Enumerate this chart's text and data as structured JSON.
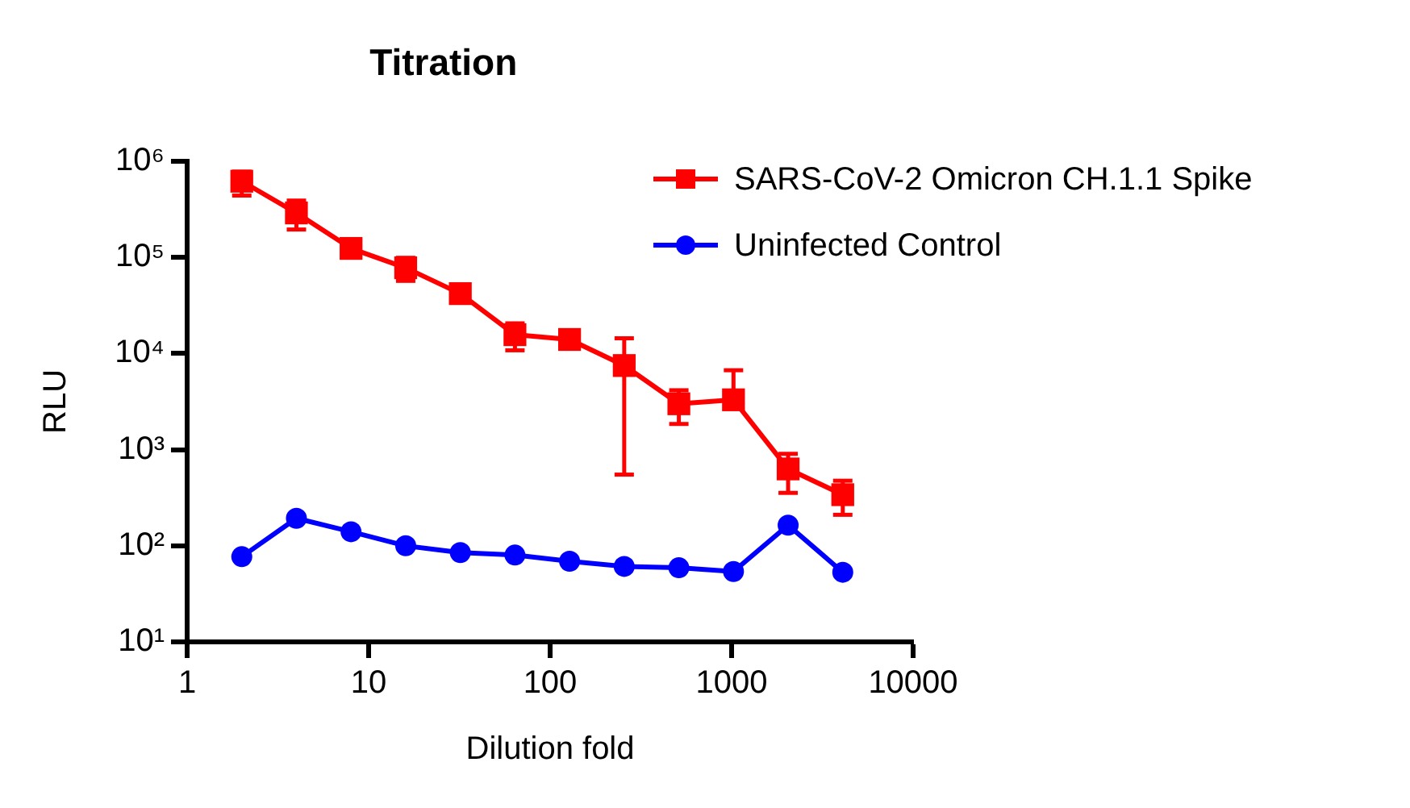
{
  "chart_data": {
    "type": "line",
    "title": "Titration",
    "xlabel": "Dilution fold",
    "ylabel": "RLU",
    "x": [
      2,
      4,
      8,
      16,
      32,
      64,
      128,
      256,
      512,
      1024,
      2048,
      4096
    ],
    "series": [
      {
        "name": "SARS-CoV-2 Omicron CH.1.1 Spike",
        "color": "#ff0000",
        "marker": "square",
        "values": [
          620000,
          290000,
          124000,
          78000,
          42000,
          15700,
          14000,
          7500,
          3000,
          3300,
          630,
          340
        ],
        "errors": [
          [
            440000,
            780000
          ],
          [
            195000,
            390000
          ],
          null,
          [
            57000,
            99000
          ],
          null,
          [
            10800,
            20600
          ],
          null,
          [
            550,
            14400
          ],
          [
            1850,
            4150
          ],
          [
            3300,
            6700
          ],
          [
            355,
            905
          ],
          [
            210,
            475
          ]
        ]
      },
      {
        "name": "Uninfected Control",
        "color": "#0000ff",
        "marker": "circle",
        "values": [
          77,
          193,
          140,
          100,
          85,
          80,
          69,
          61,
          59,
          54,
          164,
          53
        ]
      }
    ],
    "xlim": [
      1,
      10000
    ],
    "xticks": [
      1,
      10,
      100,
      1000,
      10000
    ],
    "ylim": [
      10,
      1000000
    ],
    "yticks": [
      {
        "value": 10,
        "label": "10¹"
      },
      {
        "value": 100,
        "label": "10²"
      },
      {
        "value": 1000,
        "label": "10³"
      },
      {
        "value": 10000,
        "label": "10⁴"
      },
      {
        "value": 100000,
        "label": "10⁵"
      },
      {
        "value": 1000000,
        "label": "10⁶"
      }
    ],
    "log": "xy",
    "grid": false,
    "legend": "top right",
    "line_style": "solid"
  }
}
